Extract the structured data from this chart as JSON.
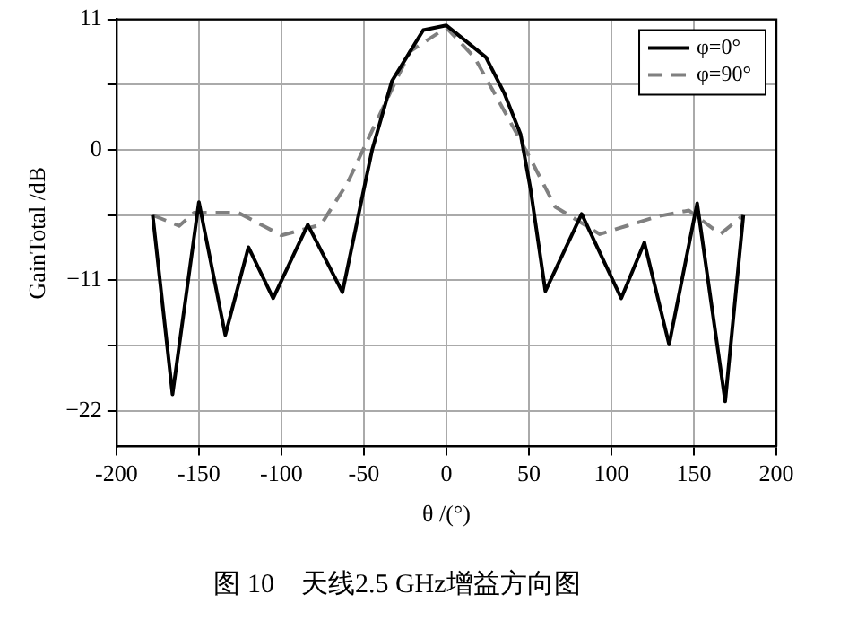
{
  "chart_data": {
    "type": "line",
    "title": "图 10　天线2.5 GHz增益方向图",
    "xlabel": "θ /(°)",
    "ylabel": "GainTotal /dB",
    "xlim": [
      -200,
      200
    ],
    "xticks": [
      -200,
      -150,
      -100,
      -50,
      0,
      50,
      100,
      150,
      200
    ],
    "ylim": [
      -25,
      11
    ],
    "yticks": [
      {
        "value": -22,
        "label": "−22"
      },
      {
        "value": -16.5,
        "label": null
      },
      {
        "value": -11,
        "label": "−11"
      },
      {
        "value": -5.5,
        "label": null
      },
      0,
      {
        "value": 5.5,
        "label": null
      },
      11
    ],
    "grid": true,
    "legend": "top right",
    "marker": "none",
    "series": [
      {
        "name": "φ=0°",
        "color": "#000000",
        "line_style": "solid",
        "x": [
          -178,
          -166,
          -150,
          -134,
          -120,
          -105,
          -84,
          -63,
          -50,
          -45,
          -33,
          -14,
          0,
          24,
          35,
          45,
          51,
          60,
          82,
          106,
          120,
          135,
          152,
          169,
          180
        ],
        "values": [
          -5.5,
          -20.6,
          -4.4,
          -15.6,
          -8.2,
          -12.5,
          -6.3,
          -12,
          -3.3,
          0,
          5.8,
          10.1,
          10.5,
          7.8,
          4.8,
          1.3,
          -3.3,
          -11.9,
          -5.4,
          -12.5,
          -7.8,
          -16.4,
          -4.5,
          -21.2,
          -5.5
        ]
      },
      {
        "name": "φ=90°",
        "color": "#808080",
        "line_style": "dashed",
        "x": [
          -178,
          -162,
          -153,
          -126,
          -100,
          -76,
          -60,
          -41,
          -22,
          0,
          17,
          35,
          50,
          66,
          93,
          128,
          147,
          166,
          180
        ],
        "values": [
          -5.5,
          -6.4,
          -5.3,
          -5.3,
          -7.2,
          -6.3,
          -2.8,
          2.8,
          8.3,
          10.3,
          7.8,
          3.3,
          -0.5,
          -4.8,
          -7.1,
          -5.6,
          -5.1,
          -7.1,
          -5.5
        ]
      }
    ]
  }
}
